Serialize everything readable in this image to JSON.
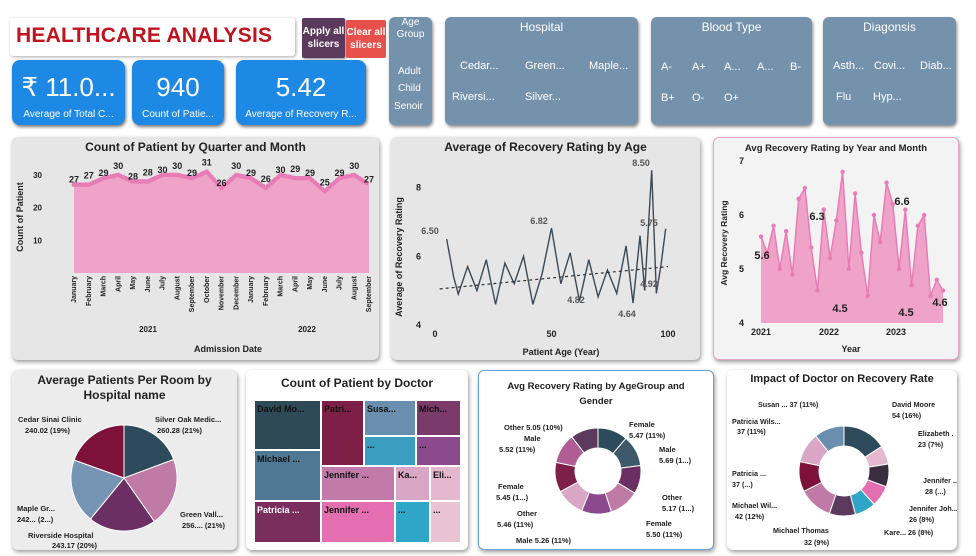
{
  "header": {
    "title": "HEALTHCARE ANALYSIS",
    "apply_label": "Apply all slicers",
    "clear_label": "Clear all slicers"
  },
  "kpis": [
    {
      "value": "₹ 11.0...",
      "label": "Average of Total C..."
    },
    {
      "value": "940",
      "label": "Count of Patie..."
    },
    {
      "value": "5.42",
      "label": "Average of Recovery R..."
    }
  ],
  "slicers": {
    "age": {
      "title": "Age Group",
      "items": [
        "Adult",
        "Child",
        "Senoir"
      ]
    },
    "hospital": {
      "title": "Hospital",
      "items": [
        "Cedar...",
        "Green...",
        "Maple...",
        "Riversi...",
        "Silver..."
      ]
    },
    "blood": {
      "title": "Blood Type",
      "items": [
        "A-",
        "A+",
        "A...",
        "A...",
        "B-",
        "B+",
        "O-",
        "O+"
      ]
    },
    "diagnosis": {
      "title": "Diagonsis",
      "items": [
        "Asth...",
        "Covi...",
        "Diab...",
        "Flu",
        "Hyp..."
      ]
    }
  },
  "colors": {
    "pink": "#f0a3c8",
    "pink_line": "#e87cb5",
    "slicer": "#7592ad",
    "kpi": "#1e88e5",
    "title_red": "#c1121f"
  },
  "charts": {
    "quarter": {
      "title": "Count of Patient by Quarter and Month",
      "ylabel": "Count of Patient",
      "xlabel": "Admission Date",
      "yticks": [
        "30",
        "20",
        "10"
      ],
      "months": [
        "January",
        "February",
        "March",
        "April",
        "May",
        "June",
        "July",
        "August",
        "September",
        "October",
        "November",
        "December",
        "January",
        "February",
        "March",
        "April",
        "May",
        "June",
        "July",
        "August",
        "September"
      ],
      "years": [
        "2021",
        "2022"
      ]
    },
    "age": {
      "title": "Average of Recovery Rating by Age",
      "ylabel": "Average of Recovery Rating",
      "xlabel": "Patient Age (Year)",
      "yticks": [
        "8",
        "6",
        "4"
      ],
      "xticks": [
        "0",
        "50",
        "100"
      ],
      "labels": [
        "6.50",
        "6.82",
        "8.50",
        "5.75",
        "4.92",
        "4.82",
        "4.64"
      ]
    },
    "yearmonth": {
      "title": "Avg Recovery Rating by Year and Month",
      "ylabel": "Avg Recovery Rating",
      "xlabel": "Year",
      "yticks": [
        "7",
        "6",
        "5",
        "4"
      ],
      "xticks": [
        "2021",
        "2022",
        "2023"
      ],
      "labels": [
        "5.6",
        "6.3",
        "6.6",
        "4.5",
        "4.5",
        "4.6"
      ]
    },
    "room": {
      "title": "Average Patients Per Room by Hospital name",
      "labels": [
        "Cedar Sinai Clinic",
        "240.02 (19%)",
        "Silver Oak Medic...",
        "260.28 (21%)",
        "Maple Gr...",
        "242... (2...)",
        "Riverside Hospital",
        "243.17 (20%)",
        "Green Vall...",
        "256.... (21%)"
      ]
    },
    "doctor": {
      "title": "Count of Patient by Doctor",
      "tiles": [
        "David Mo...",
        "Patri...",
        "Susa...",
        "Mich...",
        "Michael ...",
        "Jennifer ...",
        "Ka...",
        "Eli...",
        "Patricia ...",
        "Jennifer ..."
      ],
      "more": "..."
    },
    "agegender": {
      "title": "Avg Recovery Rating by AgeGroup and Gender",
      "labels": [
        "Other 5.05 (10%)",
        "Male",
        "5.52 (11%)",
        "Female",
        "5.45 (1...)",
        "Other",
        "5.46 (11%)",
        "Male 5.26 (11%)",
        "Female",
        "5.47 (11%)",
        "Male",
        "5.69 (1...)",
        "Other",
        "5.17 (1...)",
        "Female",
        "5.50 (11%)"
      ]
    },
    "impact": {
      "title": "Impact of Doctor on Recovery Rate",
      "labels": [
        "Susan ... 37 (11%)",
        "David Moore",
        "54 (16%)",
        "Patricia Wils...",
        "37 (11%)",
        "Elizabeth .",
        "23 (7%)",
        "Patricia ...",
        "37 (...)",
        "Jennifer ...",
        "28 (...)",
        "Michael Wil...",
        "42 (12%)",
        "Jennifer Joh...",
        "26 (8%)",
        "Kare... 26 (8%)",
        "Michael Thomas",
        "32 (9%)"
      ]
    }
  },
  "chart_data": [
    {
      "type": "area",
      "title": "Count of Patient by Quarter and Month",
      "xlabel": "Admission Date",
      "ylabel": "Count of Patient",
      "categories": [
        "January",
        "February",
        "March",
        "April",
        "May",
        "June",
        "July",
        "August",
        "September",
        "October",
        "November",
        "December",
        "January",
        "February",
        "March",
        "April",
        "May",
        "June",
        "July",
        "August",
        "September"
      ],
      "values": [
        27,
        27,
        29,
        30,
        28,
        28,
        30,
        30,
        29,
        31,
        26,
        30,
        29,
        26,
        30,
        29,
        29,
        25,
        29,
        30,
        27
      ],
      "ylim": [
        0,
        30
      ]
    },
    {
      "type": "line",
      "title": "Average of Recovery Rating by Age",
      "xlabel": "Patient Age (Year)",
      "ylabel": "Average of Recovery Rating",
      "x": [
        5,
        8,
        10,
        14,
        18,
        22,
        26,
        30,
        34,
        38,
        42,
        46,
        50,
        54,
        58,
        62,
        66,
        70,
        74,
        78,
        82,
        85,
        88,
        90,
        93,
        95,
        97,
        99
      ],
      "values": [
        6.5,
        5.4,
        4.9,
        5.7,
        5.0,
        5.9,
        4.6,
        5.8,
        5.2,
        6.0,
        4.6,
        5.5,
        6.82,
        5.2,
        6.1,
        4.7,
        5.9,
        4.82,
        5.6,
        4.92,
        6.3,
        4.64,
        6.6,
        5.0,
        8.5,
        4.92,
        5.75,
        6.8
      ],
      "ylim": [
        4,
        8.8
      ],
      "xlim": [
        0,
        100
      ]
    },
    {
      "type": "area",
      "title": "Avg Recovery Rating by Year and Month",
      "xlabel": "Year",
      "ylabel": "Avg Recovery Rating",
      "values": [
        5.6,
        5.3,
        5.8,
        5.0,
        5.7,
        4.9,
        6.3,
        6.5,
        5.4,
        4.6,
        6.1,
        5.2,
        5.9,
        6.8,
        5.0,
        6.4,
        5.3,
        4.5,
        6.0,
        5.5,
        6.6,
        6.2,
        5.0,
        6.1,
        4.7,
        5.8,
        6.0,
        4.5,
        4.8,
        4.6
      ],
      "ylim": [
        4,
        7
      ],
      "xticks": [
        "2021",
        "2022",
        "2023"
      ]
    },
    {
      "type": "pie",
      "title": "Average Patients Per Room by Hospital name",
      "categories": [
        "Cedar Sinai Clinic",
        "Silver Oak Medic...",
        "Green Vall...",
        "Riverside Hospital",
        "Maple Gr..."
      ],
      "values": [
        240.02,
        260.28,
        256,
        243.17,
        242
      ]
    },
    {
      "type": "pie",
      "title": "Avg Recovery Rating by AgeGroup and Gender",
      "categories": [
        "Female",
        "Male",
        "Other",
        "Female",
        "Other",
        "Male",
        "Female",
        "Male",
        "Other"
      ],
      "values": [
        5.47,
        5.69,
        5.17,
        5.5,
        5.46,
        5.26,
        5.45,
        5.52,
        5.05
      ]
    },
    {
      "type": "pie",
      "title": "Impact of Doctor on Recovery Rate",
      "categories": [
        "David Moore",
        "Elizabeth .",
        "Jennifer ...",
        "Jennifer Joh...",
        "Kare...",
        "Michael Thomas",
        "Michael Wil...",
        "Patricia ...",
        "Patricia Wils...",
        "Susan ..."
      ],
      "values": [
        54,
        23,
        28,
        26,
        26,
        32,
        42,
        37,
        37,
        37
      ]
    }
  ]
}
